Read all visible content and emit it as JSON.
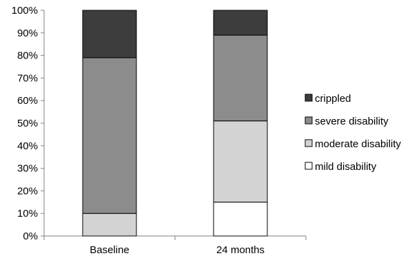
{
  "chart_data": {
    "type": "bar",
    "stacked": true,
    "percent": true,
    "categories": [
      "Baseline",
      "24 months"
    ],
    "series": [
      {
        "name": "mild disability",
        "values": [
          0,
          15
        ],
        "color": "#ffffff"
      },
      {
        "name": "moderate disability",
        "values": [
          10,
          36
        ],
        "color": "#d3d3d3"
      },
      {
        "name": "severe disability",
        "values": [
          69,
          38
        ],
        "color": "#8c8c8c"
      },
      {
        "name": "crippled",
        "values": [
          21,
          11
        ],
        "color": "#3d3d3d"
      }
    ],
    "title": "",
    "xlabel": "",
    "ylabel": "",
    "ylim": [
      0,
      100
    ],
    "yticks": [
      "0%",
      "10%",
      "20%",
      "30%",
      "40%",
      "50%",
      "60%",
      "70%",
      "80%",
      "90%",
      "100%"
    ],
    "grid": false,
    "legend_position": "right"
  }
}
